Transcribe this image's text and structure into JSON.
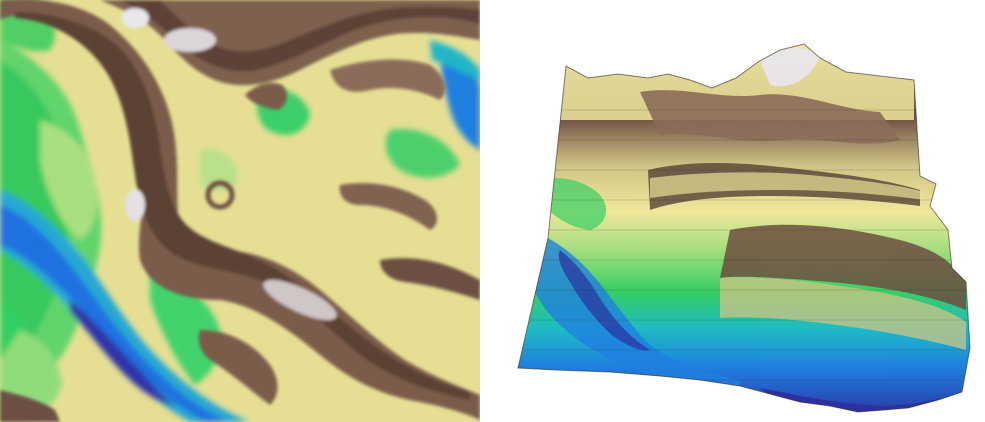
{
  "figure": {
    "panels": [
      {
        "id": "left",
        "kind": "heightmap-2d"
      },
      {
        "id": "right",
        "kind": "terrain-3d"
      }
    ],
    "palette": {
      "deep-water": "#2a2fa8",
      "water": "#1f7fe0",
      "shallow": "#1bb6c8",
      "lowland": "#2fcf62",
      "grass": "#9fe07a",
      "plain": "#efe79a",
      "sand": "#d9cf86",
      "hill": "#8a6a58",
      "rock": "#6a4a3c",
      "peak": "#f2f0f4",
      "shadow": "#2c2520"
    }
  }
}
